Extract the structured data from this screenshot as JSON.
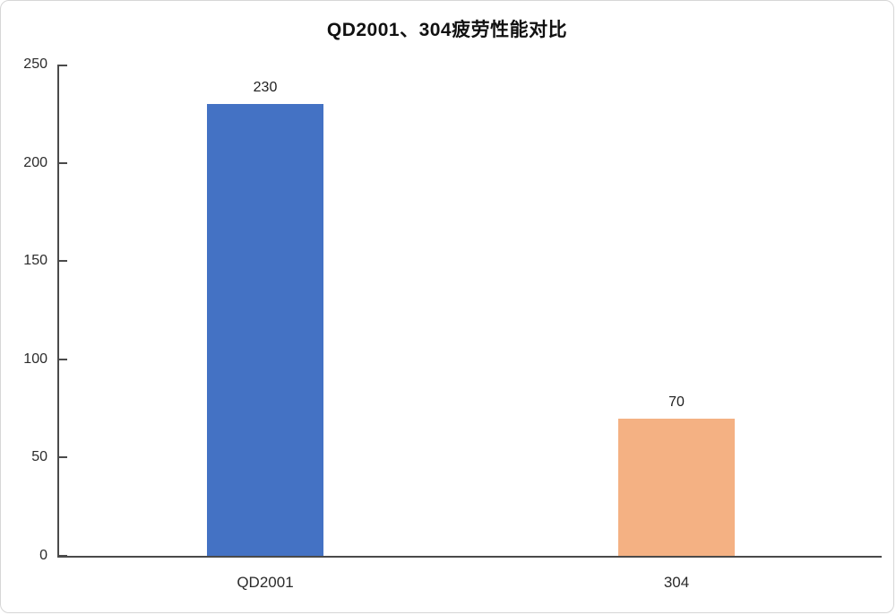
{
  "chart_data": {
    "type": "bar",
    "title": "QD2001、304疲劳性能对比",
    "categories": [
      "QD2001",
      "304"
    ],
    "values": [
      230,
      70
    ],
    "bar_colors": [
      "#4472C4",
      "#F4B183"
    ],
    "xlabel": "",
    "ylabel": "",
    "ylim": [
      0,
      250
    ],
    "yticks": [
      0,
      50,
      100,
      150,
      200,
      250
    ],
    "grid": false,
    "legend_position": "none",
    "data_labels_shown": true
  },
  "colors": {
    "axis": "#4a4a4a",
    "tick_text": "#2b2b2b",
    "title_text": "#111111",
    "background": "#ffffff",
    "frame_border": "#d6d6d6"
  }
}
